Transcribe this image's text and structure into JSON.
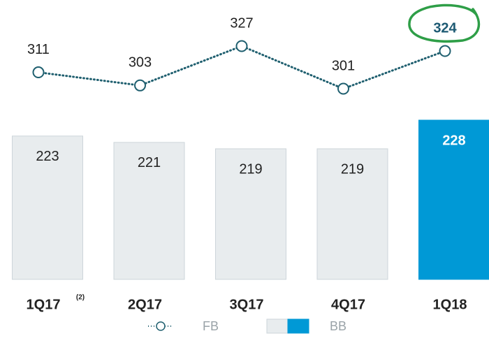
{
  "chart_data": {
    "type": "bar_line",
    "categories": [
      "1Q17",
      "2Q17",
      "3Q17",
      "4Q17",
      "1Q18"
    ],
    "category_notes": [
      "(2)",
      null,
      null,
      null,
      null
    ],
    "highlight_index": 4,
    "series": [
      {
        "name": "FB",
        "type": "line",
        "color": "#1f5f6f",
        "values": [
          311,
          303,
          327,
          301,
          324
        ]
      },
      {
        "name": "BB",
        "type": "bar",
        "color": "#e8ecee",
        "colors": [
          "#e8ecee",
          "#e8ecee",
          "#e8ecee",
          "#e8ecee",
          "#0099d6"
        ],
        "values": [
          223,
          221,
          219,
          219,
          228
        ]
      }
    ]
  }
}
